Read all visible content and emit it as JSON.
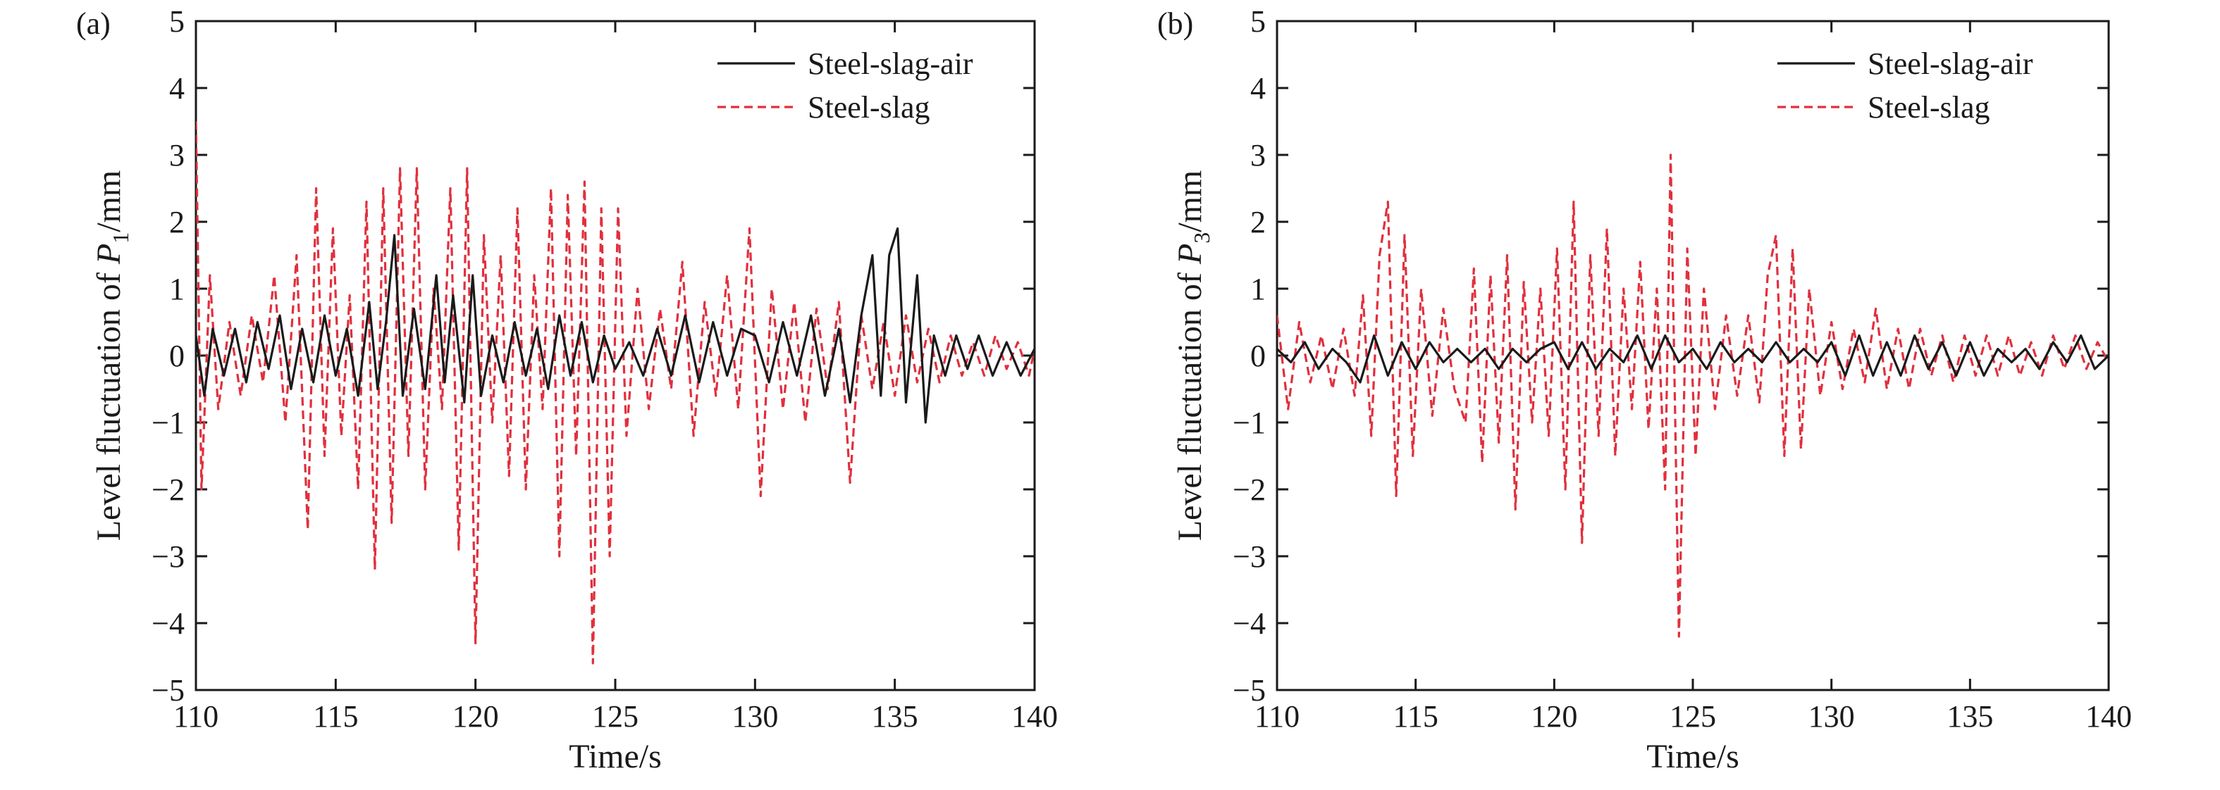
{
  "chart_data": [
    {
      "type": "line",
      "panel_label": "(a)",
      "xlabel": "Time/s",
      "ylabel_prefix": "Level fluctuation of ",
      "ylabel_var": "P",
      "ylabel_sub": "1",
      "ylabel_suffix": "/mm",
      "xlim": [
        110,
        140
      ],
      "ylim": [
        -5,
        5
      ],
      "xticks": [
        110,
        115,
        120,
        125,
        130,
        135,
        140
      ],
      "yticks": [
        -5,
        -4,
        -3,
        -2,
        -1,
        0,
        1,
        2,
        3,
        4,
        5
      ],
      "xtick_labels": [
        "110",
        "115",
        "120",
        "125",
        "130",
        "135",
        "140"
      ],
      "ytick_labels": [
        "−5",
        "−4",
        "−3",
        "−2",
        "−1",
        "0",
        "1",
        "2",
        "3",
        "4",
        "5"
      ],
      "legend_position": "top-right",
      "series": [
        {
          "name": "Steel-slag-air",
          "color": "#1a1a1a",
          "style": "solid",
          "x": [
            110.0,
            110.3,
            110.6,
            111.0,
            111.4,
            111.8,
            112.2,
            112.6,
            113.0,
            113.4,
            113.8,
            114.2,
            114.6,
            115.0,
            115.4,
            115.8,
            116.2,
            116.5,
            116.8,
            117.1,
            117.4,
            117.8,
            118.2,
            118.6,
            118.9,
            119.2,
            119.6,
            119.9,
            120.2,
            120.6,
            121.0,
            121.4,
            121.8,
            122.2,
            122.6,
            123.0,
            123.4,
            123.8,
            124.2,
            124.6,
            125.0,
            125.5,
            126.0,
            126.5,
            127.0,
            127.5,
            128.0,
            128.5,
            129.0,
            129.5,
            130.0,
            130.5,
            131.0,
            131.5,
            132.0,
            132.5,
            133.0,
            133.4,
            133.8,
            134.2,
            134.5,
            134.8,
            135.1,
            135.4,
            135.8,
            136.1,
            136.4,
            136.8,
            137.2,
            137.6,
            138.0,
            138.5,
            139.0,
            139.5,
            140.0
          ],
          "y": [
            0.3,
            -0.6,
            0.4,
            -0.3,
            0.4,
            -0.4,
            0.5,
            -0.2,
            0.6,
            -0.5,
            0.4,
            -0.4,
            0.6,
            -0.3,
            0.4,
            -0.6,
            0.8,
            -0.5,
            0.5,
            1.8,
            -0.6,
            0.7,
            -0.5,
            1.2,
            -0.4,
            0.9,
            -0.7,
            1.2,
            -0.6,
            0.3,
            -0.4,
            0.5,
            -0.3,
            0.4,
            -0.5,
            0.6,
            -0.3,
            0.5,
            -0.4,
            0.3,
            -0.2,
            0.2,
            -0.3,
            0.4,
            -0.3,
            0.6,
            -0.4,
            0.5,
            -0.3,
            0.4,
            0.3,
            -0.4,
            0.5,
            -0.3,
            0.6,
            -0.6,
            0.4,
            -0.7,
            0.6,
            1.5,
            -0.6,
            1.5,
            1.9,
            -0.7,
            1.2,
            -1.0,
            0.3,
            -0.3,
            0.3,
            -0.2,
            0.3,
            -0.3,
            0.2,
            -0.3,
            0.1
          ]
        },
        {
          "name": "Steel-slag",
          "color": "#e0303d",
          "style": "dashed",
          "x": [
            110.0,
            110.2,
            110.5,
            110.8,
            111.2,
            111.6,
            112.0,
            112.4,
            112.8,
            113.2,
            113.6,
            114.0,
            114.3,
            114.6,
            114.9,
            115.2,
            115.5,
            115.8,
            116.1,
            116.4,
            116.7,
            117.0,
            117.3,
            117.6,
            117.9,
            118.2,
            118.5,
            118.8,
            119.1,
            119.4,
            119.7,
            120.0,
            120.3,
            120.6,
            120.9,
            121.2,
            121.5,
            121.8,
            122.1,
            122.4,
            122.7,
            123.0,
            123.3,
            123.6,
            123.9,
            124.2,
            124.5,
            124.8,
            125.1,
            125.4,
            125.8,
            126.2,
            126.6,
            127.0,
            127.4,
            127.8,
            128.2,
            128.6,
            129.0,
            129.4,
            129.8,
            130.2,
            130.6,
            131.0,
            131.4,
            131.8,
            132.2,
            132.6,
            133.0,
            133.4,
            133.8,
            134.2,
            134.6,
            135.0,
            135.4,
            135.8,
            136.2,
            136.6,
            137.0,
            137.4,
            137.8,
            138.2,
            138.6,
            139.0,
            139.4,
            139.8,
            140.0
          ],
          "y": [
            3.5,
            -2.0,
            1.2,
            -0.8,
            0.5,
            -0.6,
            0.6,
            -0.4,
            1.2,
            -1.0,
            1.5,
            -2.6,
            2.5,
            -1.5,
            1.9,
            -1.2,
            0.9,
            -2.0,
            2.3,
            -3.2,
            2.5,
            -2.5,
            2.8,
            -1.5,
            2.8,
            -2.0,
            1.0,
            -0.8,
            2.5,
            -2.9,
            2.8,
            -4.3,
            1.8,
            -1.0,
            1.5,
            -1.8,
            2.2,
            -2.0,
            1.2,
            -0.8,
            2.5,
            -3.0,
            2.4,
            -1.5,
            2.6,
            -4.6,
            2.2,
            -3.0,
            2.2,
            -1.2,
            1.0,
            -0.8,
            0.7,
            -0.5,
            1.4,
            -1.2,
            0.8,
            -0.6,
            1.2,
            -0.8,
            1.9,
            -2.1,
            1.0,
            -0.8,
            0.8,
            -1.0,
            0.7,
            -0.5,
            0.8,
            -1.9,
            0.6,
            -0.5,
            0.5,
            -0.6,
            0.6,
            -0.4,
            0.4,
            -0.4,
            0.3,
            -0.3,
            0.2,
            -0.3,
            0.3,
            -0.2,
            0.2,
            -0.3,
            0.1
          ]
        }
      ]
    },
    {
      "type": "line",
      "panel_label": "(b)",
      "xlabel": "Time/s",
      "ylabel_prefix": "Level fluctuation of ",
      "ylabel_var": "P",
      "ylabel_sub": "3",
      "ylabel_suffix": "/mm",
      "xlim": [
        110,
        140
      ],
      "ylim": [
        -5,
        5
      ],
      "xticks": [
        110,
        115,
        120,
        125,
        130,
        135,
        140
      ],
      "yticks": [
        -5,
        -4,
        -3,
        -2,
        -1,
        0,
        1,
        2,
        3,
        4,
        5
      ],
      "xtick_labels": [
        "110",
        "115",
        "120",
        "125",
        "130",
        "135",
        "140"
      ],
      "ytick_labels": [
        "−5",
        "−4",
        "−3",
        "−2",
        "−1",
        "0",
        "1",
        "2",
        "3",
        "4",
        "5"
      ],
      "legend_position": "top-right",
      "series": [
        {
          "name": "Steel-slag-air",
          "color": "#1a1a1a",
          "style": "solid",
          "x": [
            110.0,
            110.5,
            111.0,
            111.5,
            112.0,
            112.5,
            113.0,
            113.5,
            114.0,
            114.5,
            115.0,
            115.5,
            116.0,
            116.5,
            117.0,
            117.5,
            118.0,
            118.5,
            119.0,
            119.5,
            120.0,
            120.5,
            121.0,
            121.5,
            122.0,
            122.5,
            123.0,
            123.5,
            124.0,
            124.5,
            125.0,
            125.5,
            126.0,
            126.5,
            127.0,
            127.5,
            128.0,
            128.5,
            129.0,
            129.5,
            130.0,
            130.5,
            131.0,
            131.5,
            132.0,
            132.5,
            133.0,
            133.5,
            134.0,
            134.5,
            135.0,
            135.5,
            136.0,
            136.5,
            137.0,
            137.5,
            138.0,
            138.5,
            139.0,
            139.5,
            140.0
          ],
          "y": [
            0.1,
            -0.1,
            0.2,
            -0.2,
            0.1,
            -0.1,
            -0.4,
            0.3,
            -0.3,
            0.2,
            -0.2,
            0.2,
            -0.1,
            0.1,
            -0.1,
            0.1,
            -0.2,
            0.1,
            -0.1,
            0.1,
            0.2,
            -0.2,
            0.2,
            -0.2,
            0.1,
            -0.1,
            0.3,
            -0.2,
            0.3,
            -0.1,
            0.1,
            -0.2,
            0.2,
            -0.1,
            0.1,
            -0.1,
            0.2,
            -0.1,
            0.1,
            -0.1,
            0.2,
            -0.3,
            0.3,
            -0.3,
            0.2,
            -0.3,
            0.3,
            -0.2,
            0.2,
            -0.3,
            0.2,
            -0.3,
            0.1,
            -0.1,
            0.1,
            -0.2,
            0.2,
            -0.1,
            0.3,
            -0.2,
            0.0
          ]
        },
        {
          "name": "Steel-slag",
          "color": "#e0303d",
          "style": "dashed",
          "x": [
            110.0,
            110.4,
            110.8,
            111.2,
            111.6,
            112.0,
            112.4,
            112.8,
            113.1,
            113.4,
            113.7,
            114.0,
            114.3,
            114.6,
            114.9,
            115.2,
            115.6,
            116.0,
            116.4,
            116.8,
            117.1,
            117.4,
            117.7,
            118.0,
            118.3,
            118.6,
            118.9,
            119.2,
            119.5,
            119.8,
            120.1,
            120.4,
            120.7,
            121.0,
            121.3,
            121.6,
            121.9,
            122.2,
            122.5,
            122.8,
            123.1,
            123.4,
            123.7,
            124.0,
            124.2,
            124.5,
            124.8,
            125.1,
            125.4,
            125.8,
            126.2,
            126.6,
            127.0,
            127.4,
            127.7,
            128.0,
            128.3,
            128.6,
            128.9,
            129.2,
            129.6,
            130.0,
            130.4,
            130.8,
            131.2,
            131.6,
            132.0,
            132.4,
            132.8,
            133.2,
            133.6,
            134.0,
            134.4,
            134.8,
            135.2,
            135.6,
            136.0,
            136.4,
            136.8,
            137.2,
            137.6,
            138.0,
            138.4,
            138.8,
            139.2,
            139.6,
            140.0
          ],
          "y": [
            0.6,
            -0.8,
            0.5,
            -0.4,
            0.3,
            -0.5,
            0.4,
            -0.6,
            0.9,
            -1.2,
            1.5,
            2.3,
            -2.1,
            1.8,
            -1.5,
            1.0,
            -0.9,
            0.7,
            -0.5,
            -1.0,
            1.3,
            -1.6,
            1.2,
            -1.3,
            1.5,
            -2.3,
            1.1,
            -1.0,
            1.0,
            -1.2,
            1.6,
            -2.0,
            2.3,
            -2.8,
            1.5,
            -1.2,
            1.9,
            -1.5,
            1.0,
            -0.8,
            1.4,
            -1.1,
            1.0,
            -2.0,
            3.0,
            -4.2,
            1.6,
            -1.5,
            1.0,
            -0.8,
            0.6,
            -0.6,
            0.6,
            -0.7,
            1.2,
            1.8,
            -1.5,
            1.6,
            -1.4,
            1.0,
            -0.6,
            0.5,
            -0.5,
            0.4,
            -0.4,
            0.7,
            -0.5,
            0.4,
            -0.5,
            0.4,
            -0.3,
            0.3,
            -0.4,
            0.3,
            -0.3,
            0.3,
            -0.3,
            0.3,
            -0.3,
            0.2,
            -0.3,
            0.3,
            -0.2,
            0.3,
            -0.2,
            0.2,
            -0.1
          ]
        }
      ]
    }
  ]
}
